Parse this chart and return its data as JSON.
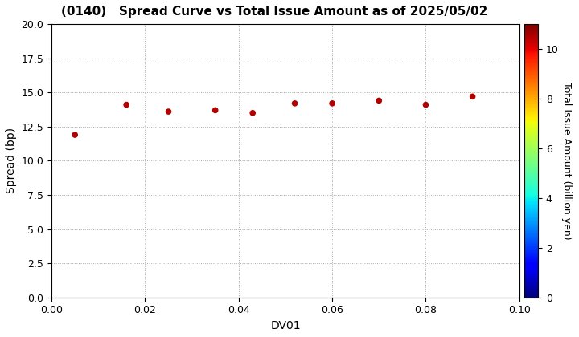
{
  "title": "(0140)   Spread Curve vs Total Issue Amount as of 2025/05/02",
  "xlabel": "DV01",
  "ylabel": "Spread (bp)",
  "colorbar_label": "Total Issue Amount (billion yen)",
  "xlim": [
    0.0,
    0.1
  ],
  "ylim": [
    0.0,
    20.0
  ],
  "xticks": [
    0.0,
    0.02,
    0.04,
    0.06,
    0.08,
    0.1
  ],
  "yticks": [
    0.0,
    2.5,
    5.0,
    7.5,
    10.0,
    12.5,
    15.0,
    17.5,
    20.0
  ],
  "colorbar_min": 0,
  "colorbar_max": 11,
  "colorbar_ticks": [
    0,
    2,
    4,
    6,
    8,
    10
  ],
  "scatter_x": [
    0.005,
    0.016,
    0.025,
    0.035,
    0.043,
    0.052,
    0.06,
    0.07,
    0.08,
    0.09
  ],
  "scatter_y": [
    11.9,
    14.1,
    13.6,
    13.7,
    13.5,
    14.2,
    14.2,
    14.4,
    14.1,
    14.7
  ],
  "scatter_color_values": [
    10.5,
    10.5,
    10.5,
    10.5,
    10.5,
    10.5,
    10.5,
    10.5,
    10.5,
    10.5
  ],
  "marker_size": 20,
  "background_color": "#ffffff",
  "grid_color": "#aaaaaa",
  "title_fontsize": 11,
  "axis_fontsize": 10,
  "tick_fontsize": 9,
  "colorbar_fontsize": 9
}
